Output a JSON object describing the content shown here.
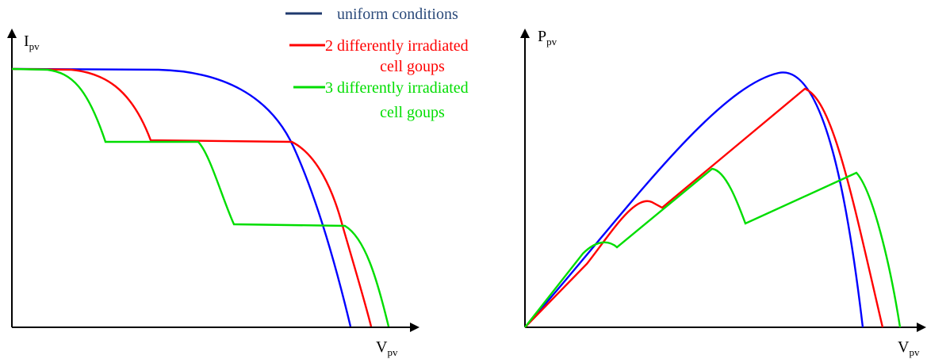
{
  "left_chart": {
    "y_label": {
      "main": "I",
      "sub": "pv"
    },
    "x_label": {
      "main": "V",
      "sub": "pv"
    }
  },
  "right_chart": {
    "y_label": {
      "main": "P",
      "sub": "pv"
    },
    "x_label": {
      "main": "V",
      "sub": "pv"
    }
  },
  "legend": [
    {
      "lines": [
        "uniform conditions"
      ]
    },
    {
      "lines": [
        "2 differently irradiated",
        "cell goups"
      ]
    },
    {
      "lines": [
        "3 differently irradiated",
        "cell goups"
      ]
    }
  ]
}
